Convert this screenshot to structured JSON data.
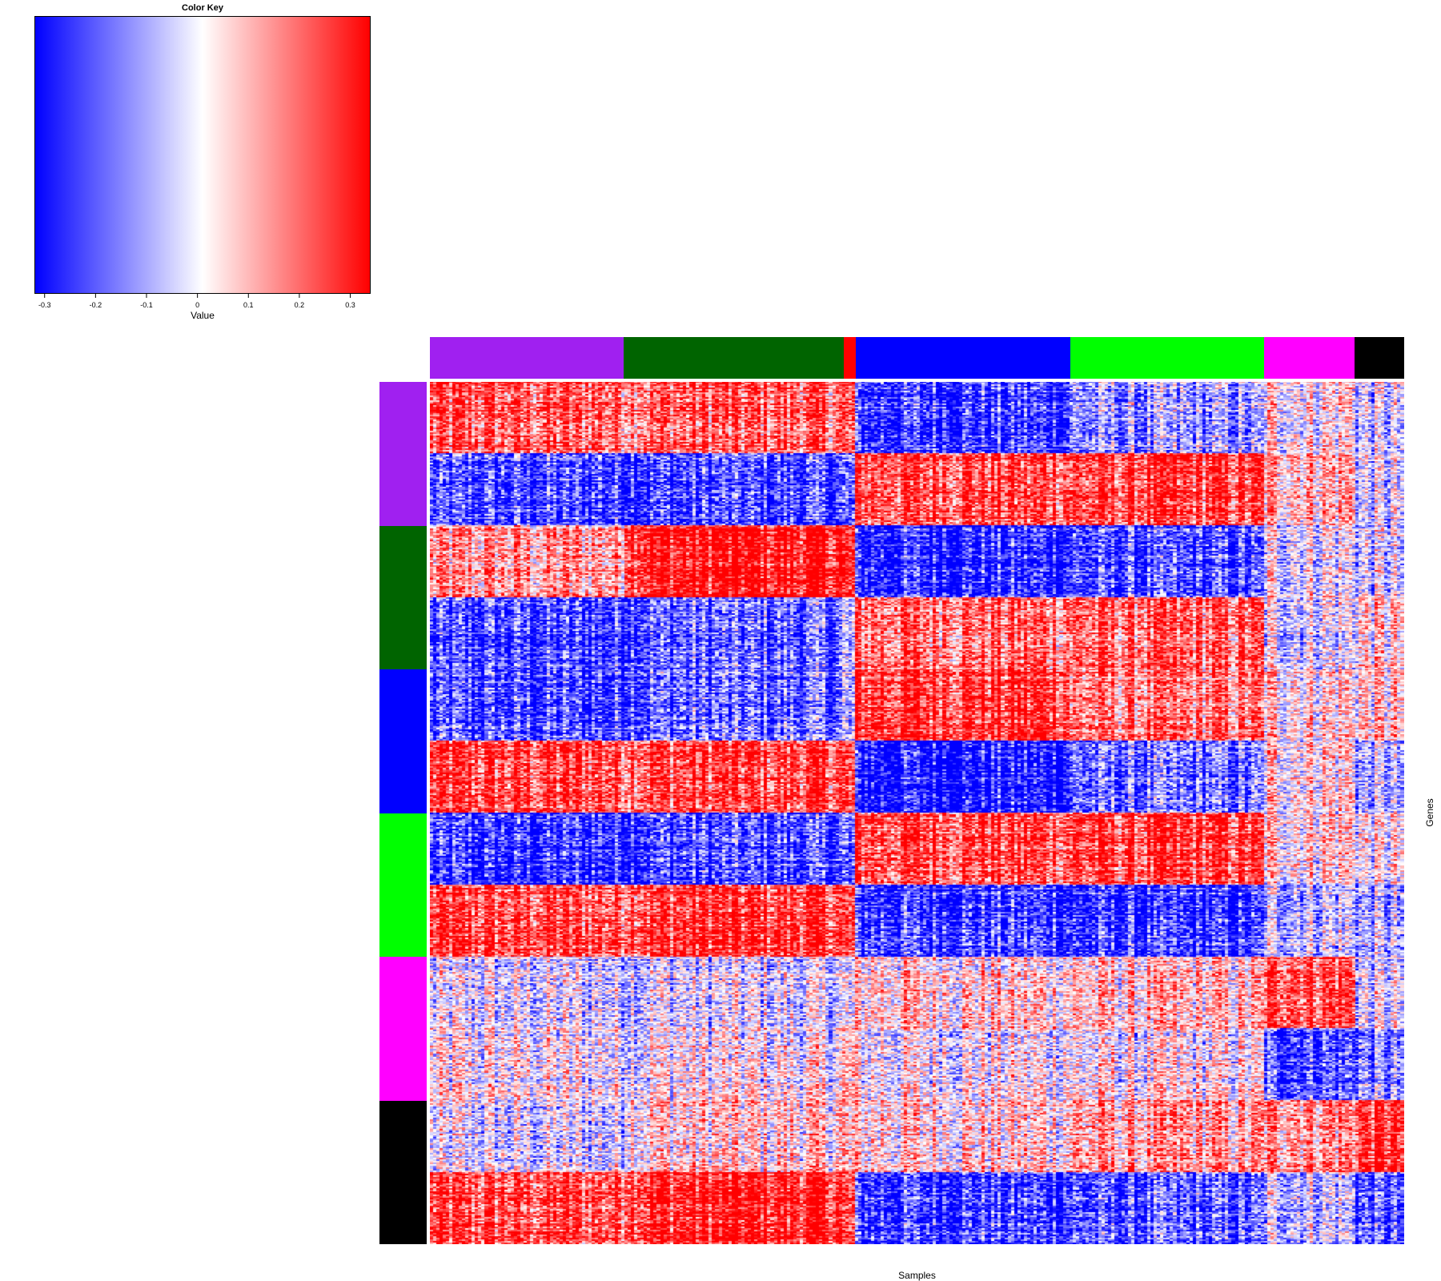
{
  "chart_data": {
    "type": "heatmap",
    "color_key": {
      "title": "Color Key",
      "xlabel": "Value",
      "colors": [
        "#0000ff",
        "#ffffff",
        "#ff0000"
      ],
      "range": [
        -0.32,
        0.34
      ],
      "ticks": [
        -0.3,
        -0.2,
        -0.1,
        0,
        0.1,
        0.2,
        0.3
      ],
      "tick_labels": [
        "-0.3",
        "-0.2",
        "-0.1",
        "0",
        "0.1",
        "0.2",
        "0.3"
      ]
    },
    "xlabel": "Samples",
    "ylabel": "Genes",
    "sample_groups": [
      {
        "color": "#a020f0",
        "fraction": 0.199
      },
      {
        "color": "#006400",
        "fraction": 0.226
      },
      {
        "color": "#ff0000",
        "fraction": 0.012
      },
      {
        "color": "#0000ff",
        "fraction": 0.22
      },
      {
        "color": "#00ff00",
        "fraction": 0.199
      },
      {
        "color": "#ff00ff",
        "fraction": 0.093
      },
      {
        "color": "#000000",
        "fraction": 0.051
      }
    ],
    "gene_groups": [
      {
        "color": "#a020f0",
        "fraction": 0.1667
      },
      {
        "color": "#006400",
        "fraction": 0.1667
      },
      {
        "color": "#0000ff",
        "fraction": 0.1667
      },
      {
        "color": "#00ff00",
        "fraction": 0.1667
      },
      {
        "color": "#ff00ff",
        "fraction": 0.1667
      },
      {
        "color": "#000000",
        "fraction": 0.1665
      }
    ],
    "block_means": [
      [
        0.2,
        0.2,
        0.2,
        -0.22,
        -0.12,
        0.05,
        -0.05
      ],
      [
        -0.22,
        -0.22,
        -0.2,
        0.22,
        0.22,
        0.1,
        -0.05
      ],
      [
        0.12,
        0.3,
        0.25,
        -0.25,
        -0.22,
        0.0,
        -0.05
      ],
      [
        -0.22,
        -0.18,
        -0.1,
        0.18,
        0.18,
        -0.02,
        0.05
      ],
      [
        -0.22,
        -0.18,
        -0.1,
        0.25,
        0.15,
        0.05,
        0.05
      ],
      [
        0.22,
        0.22,
        0.2,
        -0.28,
        -0.18,
        0.05,
        -0.1
      ],
      [
        -0.25,
        -0.22,
        -0.2,
        0.22,
        0.22,
        0.05,
        0.0
      ],
      [
        0.22,
        0.25,
        0.2,
        -0.22,
        -0.25,
        -0.05,
        -0.1
      ],
      [
        -0.05,
        -0.05,
        -0.05,
        0.05,
        0.05,
        0.22,
        -0.05
      ],
      [
        0.0,
        0.0,
        0.05,
        0.0,
        0.0,
        -0.2,
        -0.15
      ],
      [
        -0.05,
        0.05,
        0.05,
        0.05,
        0.1,
        0.15,
        0.25
      ],
      [
        0.22,
        0.28,
        0.2,
        -0.22,
        -0.2,
        -0.05,
        -0.2
      ]
    ]
  }
}
